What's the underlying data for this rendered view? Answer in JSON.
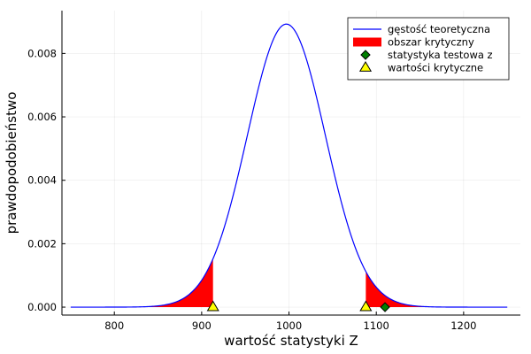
{
  "chart_data": {
    "type": "line",
    "xlabel": "wartość statystyki Z",
    "ylabel": "prawdopodobieństwo",
    "xlim": [
      740,
      1265
    ],
    "ylim": [
      -0.00025,
      0.00935
    ],
    "xticks": [
      800,
      900,
      1000,
      1100,
      1200
    ],
    "xtick_labels": [
      "800",
      "900",
      "1000",
      "1100",
      "1200"
    ],
    "yticks": [
      0.0,
      0.002,
      0.004,
      0.006,
      0.008
    ],
    "ytick_labels": [
      "0.000",
      "0.002",
      "0.004",
      "0.006",
      "0.008"
    ],
    "grid": true,
    "legend_position": "top-right",
    "series": [
      {
        "name": "gęstość teoretyczna",
        "kind": "line",
        "color": "#0000ff",
        "distribution": "normal",
        "mean": 997,
        "sd": 44.7,
        "x_range": [
          750,
          1250
        ]
      },
      {
        "name": "obszar krytyczny",
        "kind": "area",
        "color": "#ff0000",
        "regions": [
          [
            750,
            913
          ],
          [
            1088,
            1250
          ]
        ]
      },
      {
        "name": "statystyka testowa z",
        "kind": "scatter",
        "marker": "diamond",
        "color": "#008000",
        "points": [
          [
            1110,
            0.0
          ]
        ]
      },
      {
        "name": "wartości krytyczne",
        "kind": "scatter",
        "marker": "triangle",
        "color": "#ffff00",
        "points": [
          [
            913,
            0.0
          ],
          [
            1088,
            0.0
          ]
        ]
      }
    ]
  }
}
